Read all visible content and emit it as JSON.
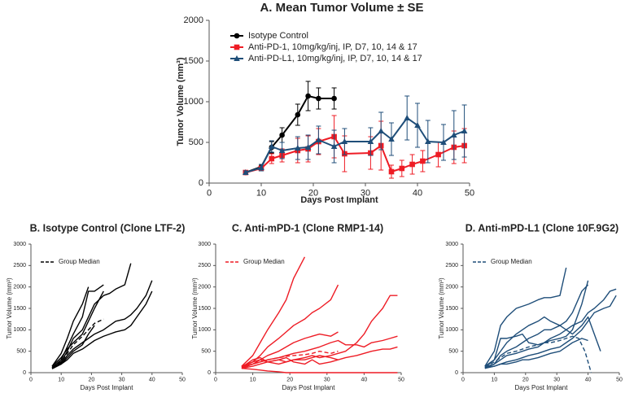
{
  "chart_data": [
    {
      "type": "line",
      "title": "A.  Mean Tumor Volume ± SE",
      "x_label": "Days Post Implant",
      "y_label": "Tumor Volume (mm³)",
      "xlim": [
        0,
        50
      ],
      "xticks": [
        0,
        10,
        20,
        30,
        40,
        50
      ],
      "ylim": [
        0,
        2000
      ],
      "yticks": [
        0,
        500,
        1000,
        1500,
        2000
      ],
      "legend": "upper left",
      "grid": false,
      "series": [
        {
          "name": "Isotype Control",
          "color": "#000000",
          "marker": "circle",
          "dash": false,
          "x": [
            7,
            10,
            12,
            14,
            17,
            19,
            21,
            24
          ],
          "values": [
            130,
            200,
            440,
            590,
            840,
            1070,
            1040,
            1040
          ],
          "errors": [
            20,
            30,
            70,
            90,
            130,
            180,
            130,
            130
          ]
        },
        {
          "name": "Anti-PD-1, 10mg/kg/inj, IP, D7, 10, 14 & 17",
          "color": "#ee1c25",
          "marker": "square",
          "dash": false,
          "x": [
            7,
            10,
            12,
            14,
            17,
            19,
            21,
            24,
            26,
            31,
            33,
            35,
            37,
            39,
            41,
            44,
            47,
            49
          ],
          "values": [
            130,
            180,
            300,
            340,
            400,
            420,
            510,
            570,
            360,
            370,
            460,
            140,
            180,
            230,
            270,
            350,
            440,
            460
          ],
          "errors": [
            20,
            30,
            60,
            80,
            150,
            160,
            160,
            260,
            220,
            200,
            300,
            80,
            100,
            120,
            130,
            150,
            200,
            210
          ]
        },
        {
          "name": "Anti-PD-L1, 10mg/kg/inj, IP,  D7, 10, 14 & 17",
          "color": "#1f4e79",
          "marker": "triangle",
          "dash": false,
          "x": [
            7,
            10,
            12,
            14,
            17,
            19,
            21,
            24,
            26,
            31,
            33,
            35,
            38,
            40,
            42,
            45,
            47,
            49
          ],
          "values": [
            130,
            190,
            450,
            400,
            430,
            440,
            530,
            450,
            510,
            510,
            640,
            540,
            800,
            710,
            510,
            500,
            590,
            640
          ],
          "errors": [
            20,
            40,
            70,
            100,
            140,
            150,
            170,
            200,
            160,
            170,
            230,
            200,
            270,
            270,
            260,
            220,
            300,
            320
          ]
        }
      ]
    },
    {
      "type": "line",
      "title": "B.  Isotype Control (Clone LTF-2)",
      "x_label": "Days Post Implant",
      "y_label": "Tumor Volume (mm³)",
      "xlim": [
        0,
        50
      ],
      "xticks": [
        0,
        10,
        20,
        30,
        40,
        50
      ],
      "ylim": [
        0,
        3000
      ],
      "yticks": [
        0,
        500,
        1000,
        1500,
        2000,
        2500,
        3000
      ],
      "legend": "upper left",
      "grid": false,
      "series": [
        {
          "color": "#000000",
          "dash": false,
          "x": [
            7,
            10,
            12,
            14,
            17,
            19
          ],
          "values": [
            150,
            450,
            800,
            1200,
            1600,
            2000
          ]
        },
        {
          "color": "#000000",
          "dash": false,
          "x": [
            7,
            10,
            12,
            14,
            17,
            19,
            21,
            24
          ],
          "values": [
            120,
            300,
            600,
            900,
            1300,
            1900,
            1900,
            2050
          ]
        },
        {
          "color": "#000000",
          "dash": false,
          "x": [
            7,
            10,
            12,
            14,
            17,
            19,
            21,
            24,
            26,
            28,
            31,
            33
          ],
          "values": [
            100,
            250,
            500,
            800,
            1000,
            1300,
            1600,
            1800,
            1850,
            1950,
            2050,
            2550
          ]
        },
        {
          "color": "#000000",
          "dash": false,
          "x": [
            7,
            10,
            12,
            14,
            17,
            19,
            21,
            24,
            26,
            28,
            31,
            33,
            35,
            38,
            40
          ],
          "values": [
            130,
            220,
            400,
            550,
            700,
            800,
            900,
            1000,
            1100,
            1200,
            1250,
            1350,
            1500,
            1800,
            2150
          ]
        },
        {
          "color": "#000000",
          "dash": false,
          "x": [
            7,
            10,
            12,
            14,
            17,
            19,
            21,
            24,
            26,
            28,
            31,
            33,
            35,
            38,
            40
          ],
          "values": [
            110,
            200,
            300,
            450,
            550,
            650,
            750,
            850,
            900,
            950,
            1000,
            1100,
            1300,
            1600,
            1900
          ]
        },
        {
          "color": "#000000",
          "dash": false,
          "x": [
            7,
            10,
            12,
            14,
            17,
            19,
            21,
            24
          ],
          "values": [
            150,
            350,
            550,
            700,
            900,
            1200,
            1500,
            1900
          ]
        },
        {
          "color": "#000000",
          "dash": false,
          "x": [
            7,
            10,
            12,
            14,
            17,
            19,
            21
          ],
          "values": [
            90,
            200,
            350,
            500,
            650,
            900,
            1100
          ]
        },
        {
          "name": "Group Median",
          "color": "#000000",
          "dash": true,
          "x": [
            7,
            10,
            12,
            14,
            17,
            19,
            21,
            24
          ],
          "values": [
            120,
            260,
            450,
            650,
            850,
            1000,
            1150,
            1250
          ]
        }
      ]
    },
    {
      "type": "line",
      "title": "C.  Anti-mPD-1 (Clone RMP1-14)",
      "x_label": "Days Post Implant",
      "y_label": "Tumor Volume (mm³)",
      "xlim": [
        0,
        50
      ],
      "xticks": [
        0,
        10,
        20,
        30,
        40,
        50
      ],
      "ylim": [
        0,
        3000
      ],
      "yticks": [
        0,
        500,
        1000,
        1500,
        2000,
        2500,
        3000
      ],
      "legend": "upper left",
      "grid": false,
      "series": [
        {
          "color": "#ee1c25",
          "dash": false,
          "x": [
            7,
            10,
            12,
            14,
            17,
            19,
            21,
            24
          ],
          "values": [
            150,
            400,
            700,
            1000,
            1400,
            1700,
            2200,
            2700
          ]
        },
        {
          "color": "#ee1c25",
          "dash": false,
          "x": [
            7,
            10,
            12,
            14,
            17,
            19,
            21,
            24,
            26,
            28,
            31,
            33
          ],
          "values": [
            120,
            250,
            400,
            600,
            800,
            950,
            1100,
            1250,
            1400,
            1500,
            1700,
            2050
          ]
        },
        {
          "color": "#ee1c25",
          "dash": false,
          "x": [
            7,
            10,
            12,
            14,
            17,
            19,
            21,
            24,
            26,
            28,
            31,
            33,
            35,
            38,
            40,
            42,
            45,
            47,
            49
          ],
          "values": [
            100,
            150,
            200,
            250,
            300,
            250,
            300,
            350,
            400,
            350,
            400,
            450,
            500,
            700,
            900,
            1200,
            1500,
            1800,
            1800
          ]
        },
        {
          "color": "#ee1c25",
          "dash": false,
          "x": [
            7,
            10,
            12,
            14,
            17,
            19,
            21,
            24,
            26,
            28,
            31,
            33,
            35,
            38,
            40,
            42,
            45,
            47,
            49
          ],
          "values": [
            130,
            200,
            250,
            300,
            350,
            400,
            450,
            500,
            550,
            600,
            700,
            750,
            650,
            650,
            600,
            700,
            750,
            800,
            850
          ]
        },
        {
          "color": "#ee1c25",
          "dash": false,
          "x": [
            7,
            10,
            12,
            14,
            17,
            19,
            21,
            24,
            26,
            28,
            31,
            33,
            35,
            38,
            40,
            42,
            45,
            47,
            49
          ],
          "values": [
            150,
            250,
            300,
            250,
            200,
            250,
            300,
            300,
            350,
            400,
            350,
            300,
            350,
            400,
            450,
            500,
            550,
            550,
            600
          ]
        },
        {
          "color": "#ee1c25",
          "dash": false,
          "x": [
            7,
            10,
            12,
            14,
            17,
            19,
            21,
            24,
            26,
            28,
            31,
            33
          ],
          "values": [
            100,
            200,
            300,
            400,
            500,
            600,
            700,
            800,
            850,
            900,
            850,
            950
          ]
        },
        {
          "color": "#ee1c25",
          "dash": false,
          "x": [
            7,
            10,
            12,
            14,
            17,
            19,
            21,
            24,
            26,
            28,
            31,
            33,
            35,
            38,
            40,
            42,
            45,
            47,
            49
          ],
          "values": [
            100,
            80,
            60,
            40,
            20,
            0,
            0,
            0,
            0,
            0,
            0,
            0,
            0,
            0,
            0,
            0,
            0,
            0,
            0
          ]
        },
        {
          "color": "#ee1c25",
          "dash": false,
          "x": [
            7,
            10,
            12,
            14,
            17,
            19,
            21,
            24,
            26,
            28,
            31,
            33
          ],
          "values": [
            130,
            300,
            350,
            250,
            300,
            350,
            250,
            200,
            300,
            200,
            250,
            300
          ]
        },
        {
          "name": "Group Median",
          "color": "#ee1c25",
          "dash": true,
          "x": [
            7,
            10,
            12,
            14,
            17,
            19,
            21,
            24,
            26,
            28,
            31,
            33
          ],
          "values": [
            130,
            200,
            250,
            300,
            350,
            380,
            400,
            420,
            450,
            500,
            450,
            500
          ]
        }
      ]
    },
    {
      "type": "line",
      "title": "D.  Anti-mPD-L1 (Clone 10F.9G2)",
      "x_label": "Days Post Implant",
      "y_label": "Tumor Volume (mm³)",
      "xlim": [
        0,
        50
      ],
      "xticks": [
        0,
        10,
        20,
        30,
        40,
        50
      ],
      "ylim": [
        0,
        3000
      ],
      "yticks": [
        0,
        500,
        1000,
        1500,
        2000,
        2500,
        3000
      ],
      "legend": "upper left",
      "grid": false,
      "series": [
        {
          "color": "#1f4e79",
          "dash": false,
          "x": [
            7,
            10,
            12,
            14,
            17,
            19,
            21,
            24,
            26,
            28,
            31,
            33
          ],
          "values": [
            150,
            500,
            1100,
            1300,
            1500,
            1550,
            1600,
            1700,
            1750,
            1750,
            1800,
            2450
          ]
        },
        {
          "color": "#1f4e79",
          "dash": false,
          "x": [
            7,
            10,
            12,
            14,
            17,
            19,
            21,
            24,
            26,
            28,
            31,
            33,
            35,
            38,
            40
          ],
          "values": [
            120,
            300,
            800,
            800,
            850,
            900,
            700,
            650,
            700,
            750,
            800,
            850,
            1000,
            1600,
            2150
          ]
        },
        {
          "color": "#1f4e79",
          "dash": false,
          "x": [
            7,
            10,
            12,
            14,
            17,
            19,
            21,
            24,
            26,
            28,
            31,
            33,
            35,
            38,
            40
          ],
          "values": [
            100,
            200,
            400,
            500,
            600,
            700,
            800,
            900,
            1000,
            1000,
            1100,
            1200,
            1400,
            1900,
            2050
          ]
        },
        {
          "color": "#1f4e79",
          "dash": false,
          "x": [
            7,
            10,
            12,
            14,
            17,
            19,
            21,
            24,
            26,
            28,
            31,
            33,
            35,
            38,
            40,
            42,
            45,
            47,
            49
          ],
          "values": [
            130,
            200,
            300,
            400,
            450,
            500,
            550,
            600,
            700,
            800,
            900,
            1000,
            1100,
            1200,
            1400,
            1500,
            1700,
            1900,
            1950
          ]
        },
        {
          "color": "#1f4e79",
          "dash": false,
          "x": [
            7,
            10,
            12,
            14,
            17,
            19,
            21,
            24,
            26,
            28,
            31,
            33,
            35,
            38,
            40,
            42,
            45,
            47,
            49
          ],
          "values": [
            110,
            150,
            200,
            250,
            300,
            350,
            400,
            450,
            500,
            550,
            600,
            700,
            800,
            1000,
            1200,
            1400,
            1500,
            1550,
            1800
          ]
        },
        {
          "color": "#1f4e79",
          "dash": false,
          "x": [
            7,
            10,
            12,
            14,
            17,
            19,
            21,
            24,
            26,
            28,
            31,
            33,
            35,
            38,
            40,
            42,
            44
          ],
          "values": [
            150,
            300,
            500,
            700,
            900,
            1000,
            1100,
            1200,
            1300,
            1200,
            1100,
            1000,
            900,
            1100,
            1300,
            900,
            500
          ]
        },
        {
          "color": "#1f4e79",
          "dash": false,
          "x": [
            7,
            10,
            12,
            14,
            17,
            19,
            21,
            24,
            26,
            28,
            31,
            33,
            35,
            38,
            40
          ],
          "values": [
            100,
            150,
            200,
            200,
            250,
            300,
            300,
            350,
            400,
            450,
            500,
            600,
            700,
            800,
            750
          ]
        },
        {
          "name": "Group Median",
          "color": "#1f4e79",
          "dash": true,
          "x": [
            7,
            10,
            12,
            14,
            17,
            19,
            21,
            24,
            26,
            28,
            31,
            33,
            35,
            37,
            39,
            41
          ],
          "values": [
            130,
            250,
            350,
            450,
            500,
            550,
            600,
            650,
            700,
            700,
            750,
            800,
            850,
            800,
            500,
            0
          ]
        }
      ]
    }
  ]
}
